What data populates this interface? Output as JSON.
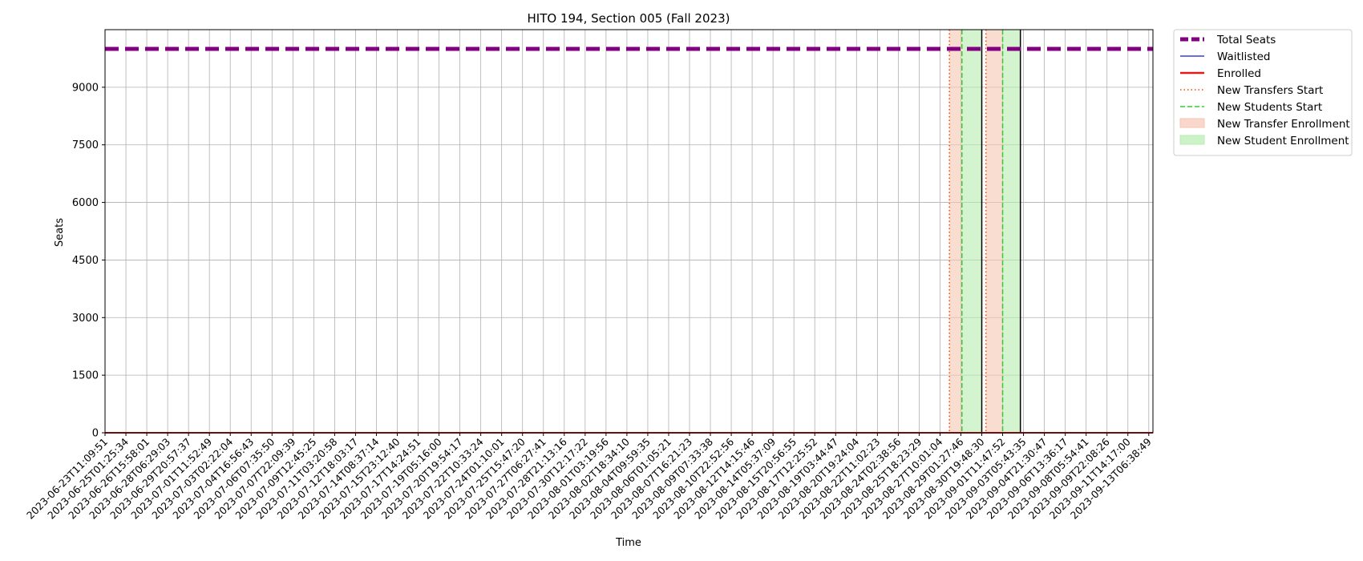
{
  "chart_data": {
    "type": "line",
    "title": "HITO 194, Section 005 (Fall 2023)",
    "xlabel": "Time",
    "ylabel": "Seats",
    "ylim": [
      0,
      10500
    ],
    "yticks": [
      0,
      1500,
      3000,
      4500,
      6000,
      7500,
      9000
    ],
    "grid": true,
    "legend_placement": "outside-right-top",
    "x_ticks": [
      "2023-06-23T11:09:51",
      "2023-06-25T01:25:34",
      "2023-06-26T15:58:01",
      "2023-06-28T06:29:03",
      "2023-06-29T20:57:37",
      "2023-07-01T11:52:49",
      "2023-07-03T02:22:04",
      "2023-07-04T16:56:43",
      "2023-07-06T07:35:50",
      "2023-07-07T22:09:39",
      "2023-07-09T12:45:25",
      "2023-07-11T03:20:58",
      "2023-07-12T18:03:17",
      "2023-07-14T08:37:14",
      "2023-07-15T23:12:40",
      "2023-07-17T14:24:51",
      "2023-07-19T05:16:00",
      "2023-07-20T19:54:17",
      "2023-07-22T10:33:24",
      "2023-07-24T01:10:01",
      "2023-07-25T15:47:20",
      "2023-07-27T06:27:41",
      "2023-07-28T21:13:16",
      "2023-07-30T12:17:22",
      "2023-08-01T03:19:56",
      "2023-08-02T18:34:10",
      "2023-08-04T09:59:35",
      "2023-08-06T01:05:21",
      "2023-08-07T16:21:23",
      "2023-08-09T07:33:38",
      "2023-08-10T22:52:56",
      "2023-08-12T14:15:46",
      "2023-08-14T05:37:09",
      "2023-08-15T20:56:55",
      "2023-08-17T12:25:52",
      "2023-08-19T03:44:47",
      "2023-08-20T19:24:04",
      "2023-08-22T11:02:23",
      "2023-08-24T02:38:56",
      "2023-08-25T18:23:29",
      "2023-08-27T10:01:04",
      "2023-08-29T01:27:46",
      "2023-08-30T19:48:30",
      "2023-09-01T11:47:52",
      "2023-09-03T05:43:35",
      "2023-09-04T21:30:47",
      "2023-09-06T13:36:17",
      "2023-09-08T05:54:41",
      "2023-09-09T22:08:26",
      "2023-09-11T14:17:00",
      "2023-09-13T06:38:49"
    ],
    "series": [
      {
        "name": "Total Seats",
        "style": "dashed",
        "color": "#800080",
        "values": [
          10000,
          10000
        ]
      },
      {
        "name": "Waitlisted",
        "style": "solid",
        "color": "#3b3bdb",
        "values": [
          0,
          0
        ]
      },
      {
        "name": "Enrolled",
        "style": "solid",
        "color": "#e31a1c",
        "values": [
          0,
          0
        ]
      }
    ],
    "x_range_ticks": [
      0,
      50.2
    ],
    "vertical_lines": [
      {
        "name": "New Transfers Start",
        "style": "dotted",
        "color": "#ff4500",
        "at_tick": [
          40.45,
          42.2
        ]
      },
      {
        "name": "New Students Start",
        "style": "dashed",
        "color": "#33cc33",
        "at_tick": [
          41.05,
          43.0
        ]
      },
      {
        "name": "black-marker",
        "style": "solid",
        "color": "#000000",
        "at_tick": [
          42.0,
          43.85
        ]
      }
    ],
    "spans": [
      {
        "name": "New Transfer Enrollment",
        "color": "#f7c6b3",
        "ranges": [
          [
            40.45,
            41.05
          ],
          [
            42.2,
            43.0
          ]
        ]
      },
      {
        "name": "New Student Enrollment",
        "color": "#b7ecb0",
        "ranges": [
          [
            41.05,
            42.0
          ],
          [
            43.0,
            43.85
          ]
        ]
      }
    ],
    "legend": [
      {
        "label": "Total Seats",
        "kind": "thick-dash",
        "color": "#800080"
      },
      {
        "label": "Waitlisted",
        "kind": "line",
        "color": "#3b3bdb"
      },
      {
        "label": "Enrolled",
        "kind": "thick-line",
        "color": "#e31a1c"
      },
      {
        "label": "New Transfers Start",
        "kind": "dotted",
        "color": "#ff4500"
      },
      {
        "label": "New Students Start",
        "kind": "dashed",
        "color": "#33cc33"
      },
      {
        "label": "New Transfer Enrollment",
        "kind": "patch",
        "color": "#f7c6b3"
      },
      {
        "label": "New Student Enrollment",
        "kind": "patch",
        "color": "#b7ecb0"
      }
    ]
  }
}
